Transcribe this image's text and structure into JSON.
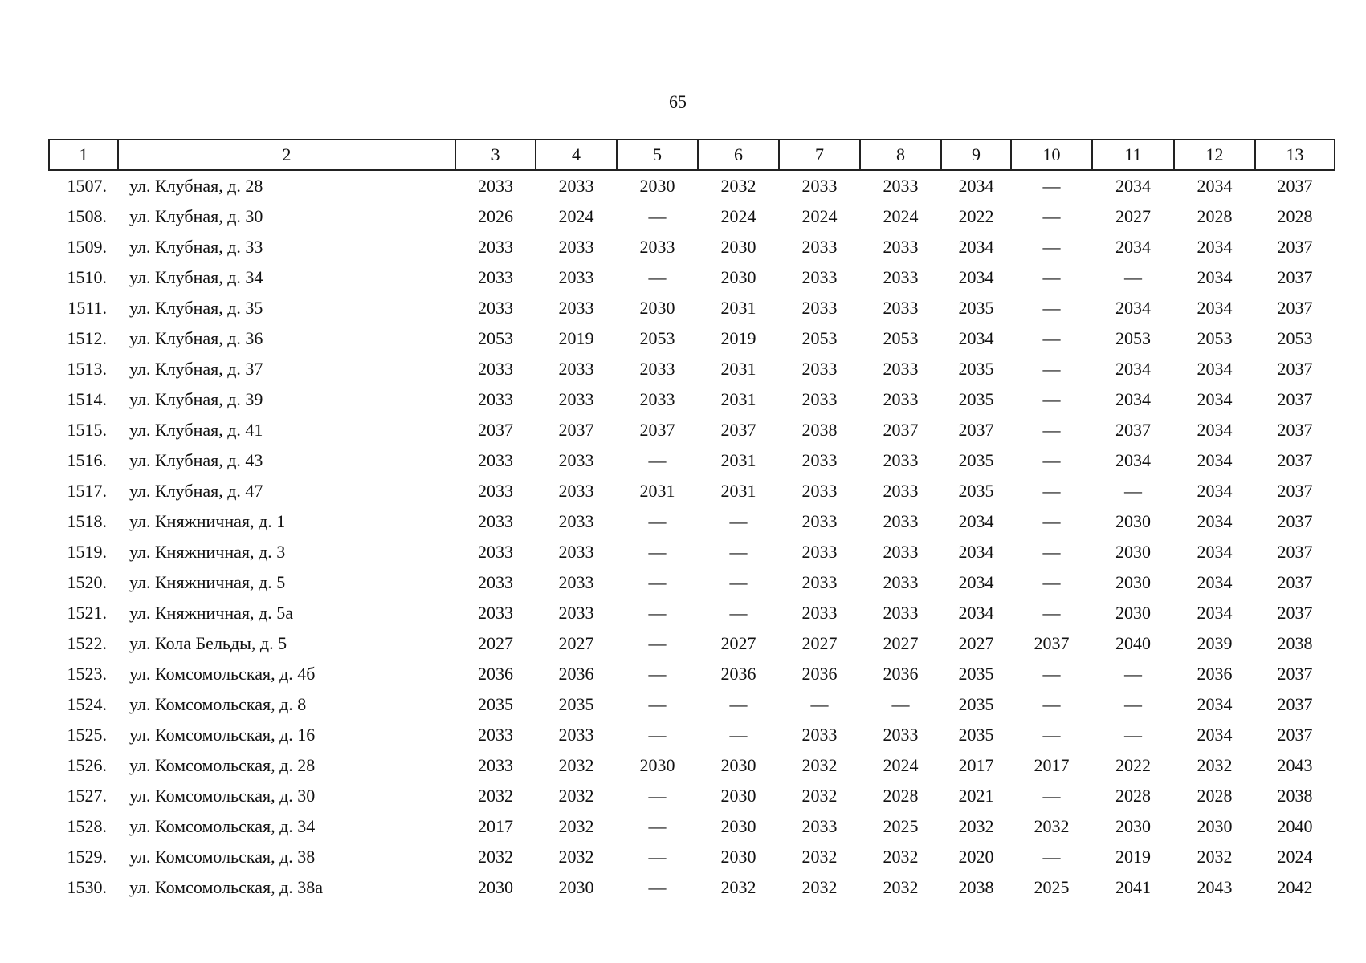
{
  "page_number": "65",
  "table": {
    "header": [
      "1",
      "2",
      "3",
      "4",
      "5",
      "6",
      "7",
      "8",
      "9",
      "10",
      "11",
      "12",
      "13"
    ],
    "rows": [
      [
        "1507.",
        "ул. Клубная, д. 28",
        "2033",
        "2033",
        "2030",
        "2032",
        "2033",
        "2033",
        "2034",
        "—",
        "2034",
        "2034",
        "2037"
      ],
      [
        "1508.",
        "ул. Клубная, д. 30",
        "2026",
        "2024",
        "—",
        "2024",
        "2024",
        "2024",
        "2022",
        "—",
        "2027",
        "2028",
        "2028"
      ],
      [
        "1509.",
        "ул. Клубная, д. 33",
        "2033",
        "2033",
        "2033",
        "2030",
        "2033",
        "2033",
        "2034",
        "—",
        "2034",
        "2034",
        "2037"
      ],
      [
        "1510.",
        "ул. Клубная, д. 34",
        "2033",
        "2033",
        "—",
        "2030",
        "2033",
        "2033",
        "2034",
        "—",
        "—",
        "2034",
        "2037"
      ],
      [
        "1511.",
        "ул. Клубная, д. 35",
        "2033",
        "2033",
        "2030",
        "2031",
        "2033",
        "2033",
        "2035",
        "—",
        "2034",
        "2034",
        "2037"
      ],
      [
        "1512.",
        "ул. Клубная, д. 36",
        "2053",
        "2019",
        "2053",
        "2019",
        "2053",
        "2053",
        "2034",
        "—",
        "2053",
        "2053",
        "2053"
      ],
      [
        "1513.",
        "ул. Клубная, д. 37",
        "2033",
        "2033",
        "2033",
        "2031",
        "2033",
        "2033",
        "2035",
        "—",
        "2034",
        "2034",
        "2037"
      ],
      [
        "1514.",
        "ул. Клубная, д. 39",
        "2033",
        "2033",
        "2033",
        "2031",
        "2033",
        "2033",
        "2035",
        "—",
        "2034",
        "2034",
        "2037"
      ],
      [
        "1515.",
        "ул. Клубная, д. 41",
        "2037",
        "2037",
        "2037",
        "2037",
        "2038",
        "2037",
        "2037",
        "—",
        "2037",
        "2034",
        "2037"
      ],
      [
        "1516.",
        "ул. Клубная, д. 43",
        "2033",
        "2033",
        "—",
        "2031",
        "2033",
        "2033",
        "2035",
        "—",
        "2034",
        "2034",
        "2037"
      ],
      [
        "1517.",
        "ул. Клубная, д. 47",
        "2033",
        "2033",
        "2031",
        "2031",
        "2033",
        "2033",
        "2035",
        "—",
        "—",
        "2034",
        "2037"
      ],
      [
        "1518.",
        "ул. Княжничная, д. 1",
        "2033",
        "2033",
        "—",
        "—",
        "2033",
        "2033",
        "2034",
        "—",
        "2030",
        "2034",
        "2037"
      ],
      [
        "1519.",
        "ул. Княжничная, д. 3",
        "2033",
        "2033",
        "—",
        "—",
        "2033",
        "2033",
        "2034",
        "—",
        "2030",
        "2034",
        "2037"
      ],
      [
        "1520.",
        "ул. Княжничная, д. 5",
        "2033",
        "2033",
        "—",
        "—",
        "2033",
        "2033",
        "2034",
        "—",
        "2030",
        "2034",
        "2037"
      ],
      [
        "1521.",
        "ул. Княжничная, д. 5а",
        "2033",
        "2033",
        "—",
        "—",
        "2033",
        "2033",
        "2034",
        "—",
        "2030",
        "2034",
        "2037"
      ],
      [
        "1522.",
        "ул. Кола Бельды, д. 5",
        "2027",
        "2027",
        "—",
        "2027",
        "2027",
        "2027",
        "2027",
        "2037",
        "2040",
        "2039",
        "2038"
      ],
      [
        "1523.",
        "ул. Комсомольская, д. 4б",
        "2036",
        "2036",
        "—",
        "2036",
        "2036",
        "2036",
        "2035",
        "—",
        "—",
        "2036",
        "2037"
      ],
      [
        "1524.",
        "ул. Комсомольская, д. 8",
        "2035",
        "2035",
        "—",
        "—",
        "—",
        "—",
        "2035",
        "—",
        "—",
        "2034",
        "2037"
      ],
      [
        "1525.",
        "ул. Комсомольская, д. 16",
        "2033",
        "2033",
        "—",
        "—",
        "2033",
        "2033",
        "2035",
        "—",
        "—",
        "2034",
        "2037"
      ],
      [
        "1526.",
        "ул. Комсомольская, д. 28",
        "2033",
        "2032",
        "2030",
        "2030",
        "2032",
        "2024",
        "2017",
        "2017",
        "2022",
        "2032",
        "2043"
      ],
      [
        "1527.",
        "ул. Комсомольская, д. 30",
        "2032",
        "2032",
        "—",
        "2030",
        "2032",
        "2028",
        "2021",
        "—",
        "2028",
        "2028",
        "2038"
      ],
      [
        "1528.",
        "ул. Комсомольская, д. 34",
        "2017",
        "2032",
        "—",
        "2030",
        "2033",
        "2025",
        "2032",
        "2032",
        "2030",
        "2030",
        "2040"
      ],
      [
        "1529.",
        "ул. Комсомольская, д. 38",
        "2032",
        "2032",
        "—",
        "2030",
        "2032",
        "2032",
        "2020",
        "—",
        "2019",
        "2032",
        "2024"
      ],
      [
        "1530.",
        "ул. Комсомольская, д. 38а",
        "2030",
        "2030",
        "—",
        "2032",
        "2032",
        "2032",
        "2038",
        "2025",
        "2041",
        "2043",
        "2042"
      ]
    ]
  }
}
